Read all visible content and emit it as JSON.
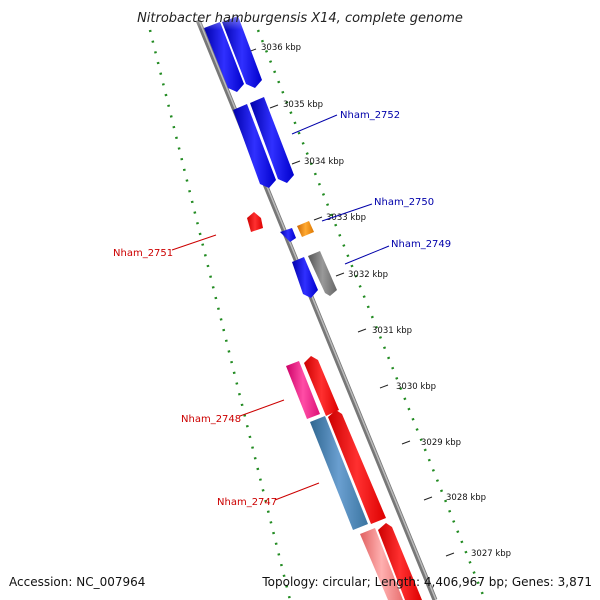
{
  "title": "Nitrobacter hamburgensis X14, complete genome",
  "footer": {
    "accession": "Accession: NC_007964",
    "topology": "Topology: circular; Length: 4,406,967 bp; Genes: 3,871"
  },
  "ticks": [
    "3036 kbp",
    "3035 kbp",
    "3034 kbp",
    "3033 kbp",
    "3032 kbp",
    "3031 kbp",
    "3030 kbp",
    "3029 kbp",
    "3028 kbp",
    "3027 kbp"
  ],
  "gene_labels": {
    "right": [
      "Nham_2752",
      "Nham_2750",
      "Nham_2749"
    ],
    "left": [
      "Nham_2751",
      "Nham_2748",
      "Nham_2747"
    ]
  },
  "colors": {
    "forward_cds": "#ff0000",
    "reverse_cds": "#0000ff",
    "rna": "#ff8c00",
    "other": "#808080",
    "pseudo_pink": "#ff1493",
    "steelblue": "#4682b4",
    "light_red": "#ff8080",
    "backbone": "#888888",
    "gc_dots": "#228b22",
    "right_label": "#0000aa",
    "left_label": "#cc0000"
  }
}
